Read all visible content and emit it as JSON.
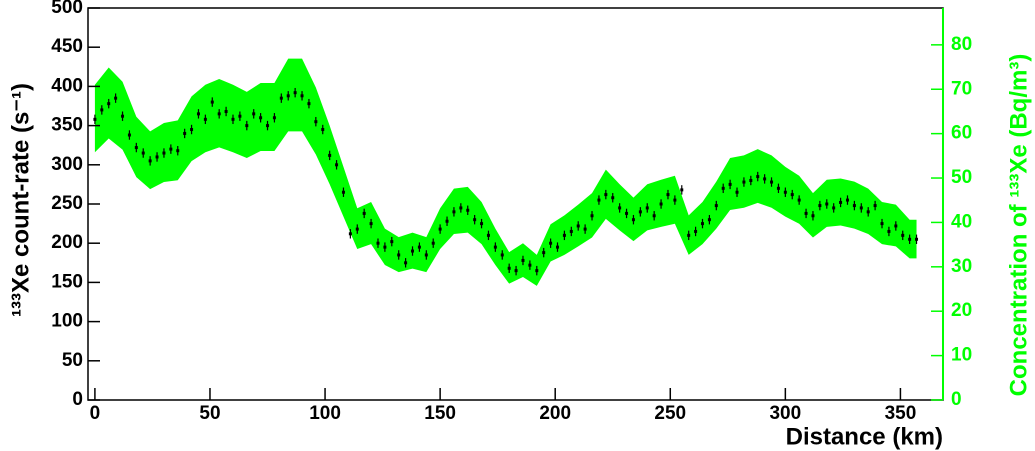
{
  "chart_data": {
    "type": "errorbar",
    "xlabel": "Distance (km)",
    "ylabel": "¹³³Xe count-rate (s⁻¹)",
    "y2label": "Concentration of ¹³³Xe (Bq/m³)",
    "x": [
      0,
      3,
      6,
      9,
      12,
      15,
      18,
      21,
      24,
      27,
      30,
      33,
      36,
      39,
      42,
      45,
      48,
      51,
      54,
      57,
      60,
      63,
      66,
      69,
      72,
      75,
      78,
      81,
      84,
      87,
      90,
      93,
      96,
      99,
      102,
      105,
      108,
      111,
      114,
      117,
      120,
      123,
      126,
      129,
      132,
      135,
      138,
      141,
      144,
      147,
      150,
      153,
      156,
      159,
      162,
      165,
      168,
      171,
      174,
      177,
      180,
      183,
      186,
      189,
      192,
      195,
      198,
      201,
      204,
      207,
      210,
      213,
      216,
      219,
      222,
      225,
      228,
      231,
      234,
      237,
      240,
      243,
      246,
      249,
      252,
      255,
      258,
      261,
      264,
      267,
      270,
      273,
      276,
      279,
      282,
      285,
      288,
      291,
      294,
      297,
      300,
      303,
      306,
      309,
      312,
      315,
      318,
      321,
      324,
      327,
      330,
      333,
      336,
      339,
      342,
      345,
      348,
      351,
      354,
      357
    ],
    "values": [
      358,
      370,
      378,
      385,
      362,
      338,
      322,
      315,
      305,
      310,
      315,
      320,
      318,
      340,
      345,
      365,
      358,
      380,
      365,
      368,
      358,
      362,
      350,
      365,
      360,
      350,
      360,
      385,
      388,
      392,
      388,
      378,
      355,
      345,
      312,
      300,
      265,
      212,
      218,
      238,
      225,
      200,
      195,
      202,
      185,
      175,
      190,
      195,
      185,
      200,
      218,
      228,
      240,
      245,
      242,
      230,
      225,
      210,
      195,
      185,
      168,
      165,
      178,
      172,
      165,
      188,
      200,
      195,
      210,
      215,
      222,
      218,
      235,
      255,
      262,
      258,
      245,
      238,
      230,
      240,
      245,
      235,
      250,
      262,
      255,
      268,
      210,
      215,
      225,
      230,
      248,
      270,
      275,
      265,
      278,
      280,
      285,
      282,
      278,
      270,
      265,
      262,
      255,
      238,
      235,
      248,
      250,
      245,
      252,
      255,
      248,
      245,
      240,
      248,
      225,
      215,
      222,
      210,
      205,
      205
    ],
    "error": 6,
    "color": "#000000",
    "band": {
      "axis": "y2",
      "color": "#00ff00",
      "x": [
        0,
        6,
        12,
        18,
        24,
        30,
        36,
        42,
        48,
        54,
        60,
        66,
        72,
        78,
        84,
        90,
        96,
        102,
        108,
        114,
        120,
        126,
        132,
        138,
        144,
        150,
        156,
        162,
        168,
        174,
        180,
        186,
        192,
        198,
        204,
        210,
        216,
        222,
        228,
        234,
        240,
        246,
        252,
        258,
        264,
        270,
        276,
        282,
        288,
        294,
        300,
        306,
        312,
        318,
        324,
        330,
        336,
        342,
        348,
        354,
        357
      ],
      "low": [
        55.8,
        58.9,
        56.4,
        50.2,
        47.5,
        49.1,
        49.5,
        53.8,
        55.8,
        56.9,
        55.8,
        54.5,
        56.1,
        56.1,
        60.5,
        60.5,
        55.3,
        48.6,
        41.3,
        34.0,
        35.1,
        30.4,
        28.8,
        29.6,
        28.8,
        34.0,
        37.4,
        37.7,
        35.1,
        30.4,
        26.2,
        27.7,
        25.7,
        31.2,
        32.7,
        34.6,
        36.6,
        40.8,
        38.2,
        35.8,
        38.2,
        39.0,
        39.7,
        32.7,
        35.1,
        38.6,
        42.8,
        43.3,
        44.4,
        43.3,
        41.3,
        39.7,
        36.6,
        39.0,
        39.3,
        38.6,
        37.4,
        35.1,
        34.6,
        31.9,
        31.9
      ],
      "high": [
        71.0,
        74.9,
        71.7,
        63.8,
        60.5,
        62.4,
        63.0,
        68.4,
        71.0,
        72.3,
        71.0,
        69.4,
        71.4,
        71.4,
        76.9,
        76.9,
        70.4,
        61.8,
        52.5,
        43.2,
        44.6,
        38.6,
        36.7,
        37.7,
        36.7,
        43.2,
        47.6,
        48.0,
        44.6,
        38.6,
        33.3,
        35.3,
        32.7,
        39.6,
        41.6,
        44.0,
        46.6,
        51.9,
        48.6,
        45.6,
        48.6,
        49.6,
        50.5,
        41.6,
        44.6,
        49.2,
        54.5,
        55.1,
        56.5,
        55.1,
        52.5,
        50.5,
        46.6,
        49.6,
        49.9,
        49.2,
        47.6,
        44.6,
        44.0,
        40.6,
        40.6
      ]
    },
    "xlim": [
      -3,
      368.5
    ],
    "ylim": [
      0,
      500
    ],
    "y2lim": [
      0,
      88.3
    ],
    "xticks": [
      0,
      50,
      100,
      150,
      200,
      250,
      300,
      350
    ],
    "yticks": [
      0,
      50,
      100,
      150,
      200,
      250,
      300,
      350,
      400,
      450,
      500
    ],
    "y2ticks": [
      0,
      10,
      20,
      30,
      40,
      50,
      60,
      70,
      80
    ],
    "y2color": "#00ff00"
  }
}
